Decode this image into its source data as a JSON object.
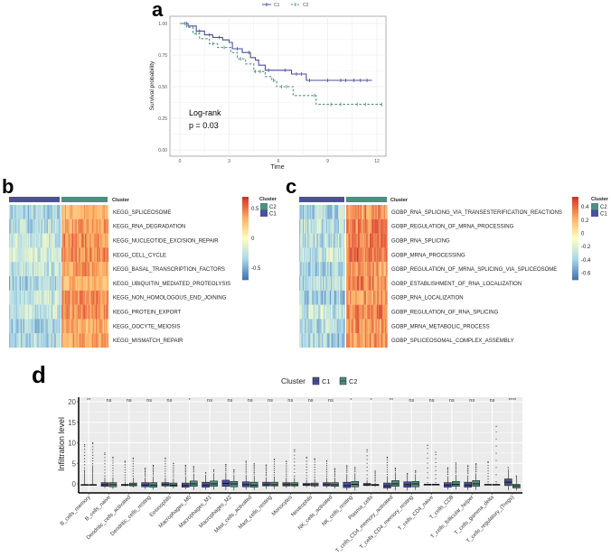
{
  "chart_data": [
    {
      "panel": "a",
      "type": "line",
      "subtype": "kaplan-meier",
      "xlabel": "Time",
      "ylabel": "Survival probability",
      "xlim": [
        0,
        12.5
      ],
      "ylim": [
        0,
        1
      ],
      "xticks": [
        "0",
        "3",
        "6",
        "9",
        "12"
      ],
      "yticks": [
        "0.00",
        "0.25",
        "0.50",
        "0.75",
        "1.00"
      ],
      "grid": true,
      "legend_position": "top",
      "annotation": [
        "Log-rank",
        "p = 0.03"
      ],
      "series": [
        {
          "name": "C1",
          "color": "#4b4f9c",
          "linestyle": "solid",
          "steps": [
            [
              0,
              1
            ],
            [
              0.5,
              0.98
            ],
            [
              1,
              0.94
            ],
            [
              1.5,
              0.91
            ],
            [
              2,
              0.89
            ],
            [
              2.6,
              0.87
            ],
            [
              3,
              0.85
            ],
            [
              3.2,
              0.8
            ],
            [
              3.8,
              0.77
            ],
            [
              4.3,
              0.73
            ],
            [
              4.6,
              0.71
            ],
            [
              4.8,
              0.67
            ],
            [
              5.2,
              0.63
            ],
            [
              6.8,
              0.6
            ],
            [
              7.7,
              0.55
            ],
            [
              11.7,
              0.55
            ]
          ],
          "censor_times": [
            0.4,
            1.2,
            1.8,
            2.4,
            3.5,
            4.2,
            5.4,
            6.4,
            7.1,
            7.4,
            7.9,
            9.0,
            9.8,
            10.1,
            10.6,
            11.0,
            11.4
          ]
        },
        {
          "name": "C2",
          "color": "#4a8f80",
          "linestyle": "dashed",
          "steps": [
            [
              0,
              1
            ],
            [
              0.4,
              0.97
            ],
            [
              0.8,
              0.92
            ],
            [
              1.2,
              0.88
            ],
            [
              1.8,
              0.84
            ],
            [
              2.3,
              0.81
            ],
            [
              3.1,
              0.77
            ],
            [
              3.5,
              0.72
            ],
            [
              4.0,
              0.68
            ],
            [
              4.5,
              0.62
            ],
            [
              5.2,
              0.58
            ],
            [
              5.6,
              0.55
            ],
            [
              5.9,
              0.5
            ],
            [
              6.9,
              0.43
            ],
            [
              8.3,
              0.36
            ],
            [
              12.4,
              0.36
            ]
          ],
          "censor_times": [
            0.3,
            1.0,
            2.0,
            2.7,
            3.7,
            4.6,
            4.9,
            5.7,
            6.2,
            6.5,
            8.2,
            9.2,
            9.8,
            10.8,
            11.3,
            12.3
          ]
        }
      ]
    },
    {
      "panel": "b",
      "type": "heatmap",
      "annotation_label": "Cluster",
      "rows": [
        "KEGG_SPLICEOSOME",
        "KEGG_RNA_DEGRADATION",
        "KEGG_NUCLEOTIDE_EXCISION_REPAIR",
        "KEGG_CELL_CYCLE",
        "KEGG_BASAL_TRANSCRIPTION_FACTORS",
        "KEGG_UBIQUITIN_MEDIATED_PROTEOLYSIS",
        "KEGG_NON_HOMOLOGOUS_END_JOINING",
        "KEGG_PROTEIN_EXPORT",
        "KEGG_OOCYTE_MEIOSIS",
        "KEGG_MISMATCH_REPAIR"
      ],
      "column_groups": [
        "C1",
        "C2"
      ],
      "color_scale": {
        "min": -0.7,
        "max": 0.7,
        "ticks": [
          "0.5",
          "0",
          "-0.5"
        ],
        "colors": [
          "#4575b4",
          "#abd9e9",
          "#ffffbf",
          "#fdae61",
          "#d73027"
        ]
      },
      "legend": {
        "title": "Cluster",
        "items": [
          {
            "label": "C2",
            "color": "#4a8f80"
          },
          {
            "label": "C1",
            "color": "#4b4f9c"
          }
        ]
      }
    },
    {
      "panel": "c",
      "type": "heatmap",
      "annotation_label": "Cluster",
      "rows": [
        "GOBP_RNA_SPLICING_VIA_TRANSESTERIFICATION_REACTIONS",
        "GOBP_REGULATION_OF_MRNA_PROCESSING",
        "GOBP_RNA_SPLICING",
        "GOBP_MRNA_PROCESSING",
        "GOBP_REGULATION_OF_MRNA_SPLICING_VIA_SPLICEOSOME",
        "GOBP_ESTABLISHMENT_OF_RNA_LOCALIZATION",
        "GOBP_RNA_LOCALIZATION",
        "GOBP_REGULATION_OF_RNA_SPLICING",
        "GOBP_MRNA_METABOLIC_PROCESS",
        "GOBP_SPLICEOSOMAL_COMPLEX_ASSEMBLY"
      ],
      "column_groups": [
        "C1",
        "C2"
      ],
      "color_scale": {
        "min": -0.7,
        "max": 0.55,
        "ticks": [
          "0.4",
          "0.2",
          "0",
          "-0.2",
          "-0.4",
          "-0.6"
        ],
        "colors": [
          "#4575b4",
          "#abd9e9",
          "#ffffbf",
          "#fdae61",
          "#d73027"
        ]
      },
      "legend": {
        "title": "Cluster",
        "items": [
          {
            "label": "C2",
            "color": "#4a8f80"
          },
          {
            "label": "C1",
            "color": "#4b4f9c"
          }
        ]
      }
    },
    {
      "panel": "d",
      "type": "box",
      "ylabel": "Infiltration level",
      "ylim": [
        -2.5,
        20
      ],
      "yticks": [
        "0",
        "5",
        "10",
        "15",
        "20"
      ],
      "grid": true,
      "legend_position": "top",
      "legend": {
        "title": "Cluster",
        "items": [
          {
            "label": "C1",
            "color": "#4b4f9c"
          },
          {
            "label": "C2",
            "color": "#4a8f80"
          }
        ]
      },
      "categories": [
        "B_cells_memory",
        "B_cells_naive",
        "Dendritic_cells_activated",
        "Dendritic_cells_resting",
        "Eosinophils",
        "Macrophages_M0",
        "Macrophages_M1",
        "Macrophages_M2",
        "Mast_cells_activated",
        "Mast_cells_resting",
        "Monocytes",
        "Neutrophils",
        "NK_cells_activated",
        "NK_cells_resting",
        "Plasma_cells",
        "T_cells_CD4_memory_activated",
        "T_cells_CD4_memory_resting",
        "T_cells_CD4_naive",
        "T_cells_CD8",
        "T_cells_follicular_helper",
        "T_cells_gamma_delta",
        "T_cells_regulatory_(Tregs)"
      ],
      "significance": [
        "**",
        "ns",
        "ns",
        "ns",
        "ns",
        "*",
        "ns",
        "ns",
        "ns",
        "ns",
        "ns",
        "ns",
        "ns",
        "*",
        "*",
        "**",
        "ns",
        "ns",
        "ns",
        "ns",
        "ns",
        "****"
      ],
      "series": [
        {
          "name": "C1",
          "boxes": [
            [
              -0.2,
              -0.2,
              -0.15,
              -0.2,
              3.5,
              9.5
            ],
            [
              -0.6,
              -0.2,
              0.3,
              -1,
              1.5,
              7.5
            ],
            [
              -0.4,
              -0.3,
              -0.1,
              -0.6,
              0.5,
              5.5
            ],
            [
              -0.7,
              -0.3,
              0.3,
              -1.2,
              1.5,
              3.8
            ],
            [
              -0.5,
              -0.2,
              0.3,
              -1,
              1.5,
              6.3
            ],
            [
              -0.8,
              -0.4,
              0.2,
              -1.3,
              1.8,
              4.5
            ],
            [
              -0.8,
              -0.3,
              0.4,
              -1.4,
              2.2,
              2.7
            ],
            [
              -0.6,
              0.1,
              0.9,
              -1.5,
              2.8,
              4.7
            ],
            [
              -0.7,
              -0.2,
              0.5,
              -1.4,
              2.2,
              5.5
            ],
            [
              -0.5,
              -0.2,
              0.4,
              -1.2,
              1.6,
              4.6
            ],
            [
              -0.5,
              -0.2,
              0.3,
              -1,
              1.5,
              5.5
            ],
            [
              -0.4,
              -0.2,
              0.1,
              -0.8,
              0.9,
              6.5
            ],
            [
              -0.5,
              -0.2,
              0.3,
              -1,
              1.5,
              5.6
            ],
            [
              -0.9,
              -0.4,
              0.4,
              -1.6,
              2.4,
              4.4
            ],
            [
              -0.4,
              -0.2,
              0.1,
              -0.6,
              0.9,
              8.3
            ],
            [
              -1,
              -0.5,
              0.2,
              -1.6,
              1.9,
              6.5
            ],
            [
              -0.8,
              -0.2,
              0.5,
              -1.6,
              2.4,
              2.5
            ],
            [
              -0.1,
              -0.1,
              -0.1,
              -0.1,
              -0.1,
              9.4
            ],
            [
              -0.8,
              -0.3,
              0.3,
              -1.4,
              1.9,
              3.9
            ],
            [
              -0.8,
              -0.3,
              0.4,
              -1.5,
              2.1,
              4.4
            ],
            [
              -0.2,
              -0.2,
              -0.1,
              -0.2,
              0.1,
              5.4
            ],
            [
              -0.4,
              0.4,
              1.2,
              -1.5,
              3.6,
              4
            ]
          ]
        },
        {
          "name": "C2",
          "boxes": [
            [
              -0.2,
              -0.2,
              -0.15,
              -0.2,
              4.5,
              10
            ],
            [
              -0.7,
              -0.2,
              0.3,
              -1.2,
              1.6,
              6.5
            ],
            [
              -0.5,
              -0.2,
              0.2,
              -0.9,
              1.5,
              6.3
            ],
            [
              -0.8,
              -0.3,
              0.3,
              -1.4,
              1.8,
              4.5
            ],
            [
              -0.6,
              -0.3,
              0.2,
              -1.1,
              1.3,
              5.0
            ],
            [
              -0.6,
              0,
              0.7,
              -1.5,
              2.5,
              4.2
            ],
            [
              -0.6,
              0,
              0.7,
              -1.4,
              2.6,
              3.4
            ],
            [
              -0.7,
              0,
              0.6,
              -1.6,
              2.2,
              3.4
            ],
            [
              -0.8,
              -0.3,
              0.4,
              -1.5,
              2.0,
              4.9
            ],
            [
              -0.5,
              -0.2,
              0.4,
              -1.2,
              1.8,
              6.0
            ],
            [
              -0.5,
              -0.2,
              0.3,
              -1,
              1.5,
              8.3
            ],
            [
              -0.5,
              -0.2,
              0.2,
              -0.9,
              1.2,
              6.1
            ],
            [
              -0.6,
              -0.2,
              0.3,
              -1.1,
              1.5,
              3.7
            ],
            [
              -0.7,
              -0.1,
              0.6,
              -1.6,
              2.6,
              4
            ],
            [
              -0.4,
              -0.3,
              -0.1,
              -0.7,
              0.3,
              3.1
            ],
            [
              -0.6,
              0,
              0.8,
              -1.6,
              2.8,
              3.8
            ],
            [
              -0.7,
              0,
              0.6,
              -1.5,
              2.3,
              3.2
            ],
            [
              -0.1,
              -0.1,
              -0.1,
              -0.1,
              -0.1,
              7.7
            ],
            [
              -0.6,
              -0.1,
              0.6,
              -1.4,
              2.2,
              5.1
            ],
            [
              -0.6,
              0,
              0.8,
              -1.5,
              2.6,
              4.9
            ],
            [
              -0.2,
              -0.2,
              -0.1,
              -0.2,
              0.1,
              14
            ],
            [
              -1,
              -0.5,
              -0.1,
              -1.6,
              1.8,
              1.9
            ]
          ]
        }
      ]
    }
  ],
  "panel_labels": {
    "a": "a",
    "b": "b",
    "c": "c",
    "d": "d"
  }
}
